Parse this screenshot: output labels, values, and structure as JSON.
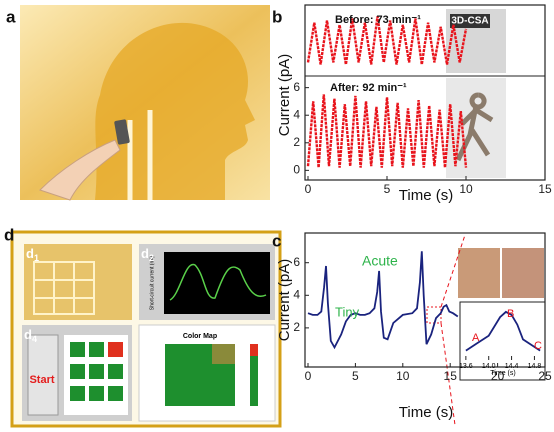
{
  "panel_labels": [
    "a",
    "b",
    "c",
    "d"
  ],
  "subpanels": [
    {
      "letter": "d",
      "index": "1"
    },
    {
      "letter": "d",
      "index": "2"
    },
    {
      "letter": "d",
      "index": "4"
    },
    {
      "letter": "d",
      "index": "3"
    }
  ],
  "texts": {
    "csa": "3D-CSA",
    "start": "Start",
    "color_map": "Color Map",
    "d2_ylabel": "Short-circuit current (nA)"
  },
  "chart_data": [
    {
      "type": "line",
      "color": "#e8141c",
      "annotations": [
        "Before: 73 min⁻¹"
      ],
      "x": [
        0,
        0.4,
        0.8,
        1.2,
        1.6,
        2,
        2.4,
        2.8,
        3.2,
        3.6,
        4,
        4.4,
        4.8,
        5.2,
        5.6,
        6,
        6.4,
        6.8,
        7.2,
        7.6,
        8,
        8.4,
        8.8,
        9.2,
        9.6,
        10
      ],
      "values": [
        0.6,
        2.5,
        0.5,
        2.6,
        0.6,
        2.4,
        0.5,
        2.7,
        0.6,
        2.5,
        0.5,
        2.8,
        0.6,
        2.6,
        0.5,
        2.4,
        0.6,
        2.7,
        0.5,
        2.5,
        0.6,
        2.3,
        0.5,
        2.4,
        0.6,
        2.2
      ],
      "xlim": [
        0,
        15
      ],
      "ylim": [
        0,
        3.2
      ]
    },
    {
      "type": "line",
      "color": "#e8141c",
      "annotations": [
        "After: 92 min⁻¹"
      ],
      "x": [
        0,
        0.33,
        0.67,
        1,
        1.33,
        1.67,
        2,
        2.33,
        2.67,
        3,
        3.33,
        3.67,
        4,
        4.33,
        4.67,
        5,
        5.33,
        5.67,
        6,
        6.33,
        6.67,
        7,
        7.33,
        7.67,
        8,
        8.33,
        8.67,
        9,
        9.33,
        9.67,
        10
      ],
      "values": [
        0.3,
        5.0,
        0.2,
        5.5,
        0.3,
        5.2,
        0.2,
        4.8,
        0.3,
        5.4,
        0.2,
        5.0,
        0.3,
        4.6,
        0.2,
        5.3,
        0.3,
        4.9,
        0.2,
        4.5,
        0.3,
        5.1,
        0.2,
        4.7,
        0.3,
        4.4,
        0.2,
        4.8,
        0.3,
        4.3,
        0.2
      ],
      "xlim": [
        0,
        15
      ],
      "xticks": [
        0,
        5,
        10,
        15
      ],
      "ylim": [
        -0.7,
        6.7
      ],
      "yticks": [
        0,
        2,
        4,
        6
      ],
      "xlabel": "Time (s)",
      "ylabel": "Current (pA)"
    },
    {
      "type": "line",
      "color": "#1a237e",
      "annotations": [
        "Acute",
        "Tiny"
      ],
      "x": [
        0,
        0.5,
        1,
        1.4,
        1.7,
        1.9,
        2.1,
        2.4,
        2.8,
        3.5,
        4,
        4.5,
        5,
        5.5,
        6,
        6.5,
        7,
        7.3,
        7.5,
        7.7,
        8,
        8.4,
        9,
        10,
        11,
        11.5,
        11.8,
        12,
        12.2,
        12.5,
        13,
        13.5,
        14,
        14.3,
        14.6,
        14.9,
        15.3,
        15.8
      ],
      "values": [
        2.9,
        2.8,
        2.8,
        3.0,
        4.5,
        5.8,
        3.5,
        1.2,
        0.8,
        1.6,
        2.4,
        2.8,
        2.9,
        2.8,
        2.8,
        2.9,
        3.2,
        4.2,
        5.5,
        3.0,
        1.4,
        1.3,
        2.3,
        2.8,
        2.9,
        3.2,
        4.8,
        6.7,
        4.0,
        1.0,
        1.6,
        2.6,
        2.9,
        3.3,
        3.4,
        3.0,
        2.9,
        2.7
      ],
      "xlim": [
        0,
        25
      ],
      "xticks": [
        0,
        5,
        10,
        15,
        20,
        25
      ],
      "ylim": [
        -0.4,
        7.7
      ],
      "yticks": [
        2,
        4,
        6
      ],
      "xlabel": "Time (s)",
      "ylabel": "Current (pA)"
    },
    {
      "type": "line",
      "color": "#1a237e",
      "annotations": [
        "A",
        "B",
        "C"
      ],
      "x": [
        13.6,
        13.8,
        14.0,
        14.2,
        14.3,
        14.4,
        14.5,
        14.6,
        14.8,
        14.9
      ],
      "values": [
        2.9,
        3.0,
        3.1,
        3.35,
        3.42,
        3.38,
        3.25,
        3.05,
        2.95,
        2.9
      ],
      "xlim": [
        13.55,
        14.95
      ],
      "xticks": [
        13.6,
        {
          "value": 14.0,
          "label": "14.0"
        },
        14.4,
        14.8
      ],
      "ylim": [
        2.8,
        3.5
      ],
      "xlabel": "Time (s)"
    }
  ]
}
